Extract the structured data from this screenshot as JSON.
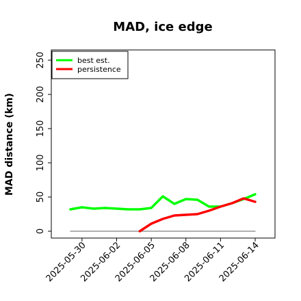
{
  "chart_data": {
    "type": "line",
    "title": "MAD, ice edge",
    "ylabel": "MAD distance (km)",
    "xlabel": "",
    "ylim": [
      0,
      250
    ],
    "yticks": [
      "0",
      "50",
      "100",
      "150",
      "200",
      "250"
    ],
    "x_tick_labels": [
      "2025-05-30",
      "2025-06-02",
      "2025-06-05",
      "2025-06-08",
      "2025-06-11",
      "2025-06-14"
    ],
    "x_tick_dates": [
      "2025-05-30",
      "2025-06-02",
      "2025-06-05",
      "2025-06-08",
      "2025-06-11",
      "2025-06-14"
    ],
    "legend_location": "upper left",
    "grid": false,
    "series": [
      {
        "name": "best est.",
        "color": "#00ff00",
        "x": [
          "2025-05-29",
          "2025-05-30",
          "2025-05-31",
          "2025-06-01",
          "2025-06-02",
          "2025-06-03",
          "2025-06-04",
          "2025-06-05",
          "2025-06-06",
          "2025-06-07",
          "2025-06-08",
          "2025-06-09",
          "2025-06-10",
          "2025-06-11",
          "2025-06-12",
          "2025-06-13",
          "2025-06-14"
        ],
        "values": [
          32,
          35,
          33,
          34,
          33,
          32,
          32,
          34,
          51,
          40,
          47,
          46,
          36,
          36,
          41,
          47,
          54
        ]
      },
      {
        "name": "persistence",
        "color": "#ff0000",
        "x": [
          "2025-06-04",
          "2025-06-05",
          "2025-06-06",
          "2025-06-07",
          "2025-06-08",
          "2025-06-09",
          "2025-06-10",
          "2025-06-11",
          "2025-06-12",
          "2025-06-13",
          "2025-06-14"
        ],
        "values": [
          0,
          11,
          18,
          23,
          24,
          25,
          30,
          36,
          41,
          48,
          43
        ]
      },
      {
        "name": "",
        "color": "#808080",
        "x": [
          "2025-05-29",
          "2025-06-14"
        ],
        "values": [
          0,
          0
        ]
      }
    ]
  }
}
